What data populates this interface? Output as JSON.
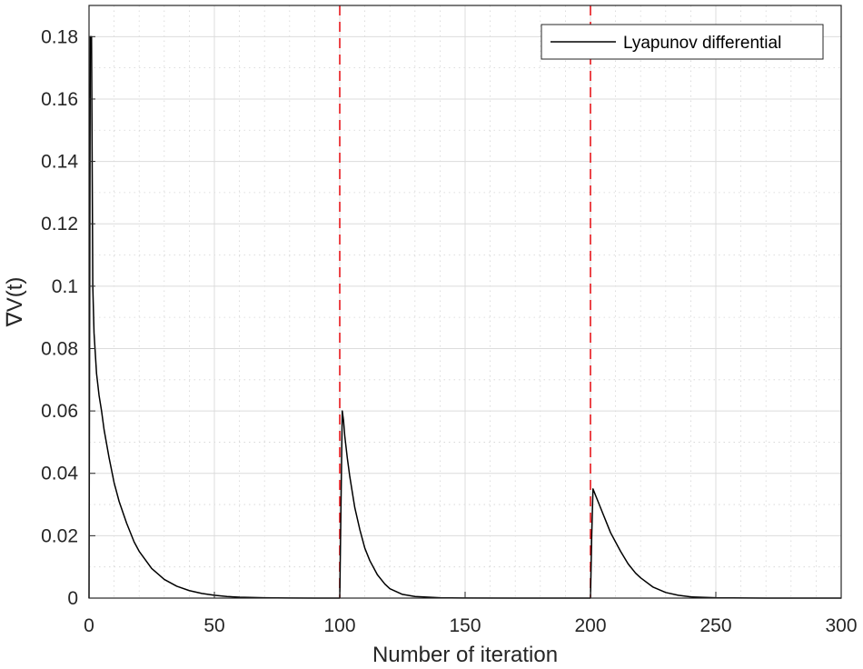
{
  "chart_data": {
    "type": "line",
    "title": "",
    "xlabel": "Number of iteration",
    "ylabel": "∇V(t)",
    "xlim": [
      0,
      300
    ],
    "ylim": [
      0,
      0.19
    ],
    "x_ticks": [
      0,
      50,
      100,
      150,
      200,
      250,
      300
    ],
    "x_tick_labels": [
      "0",
      "50",
      "100",
      "150",
      "200",
      "250",
      "300"
    ],
    "y_ticks": [
      0,
      0.02,
      0.04,
      0.06,
      0.08,
      0.1,
      0.12,
      0.14,
      0.16,
      0.18
    ],
    "y_tick_labels": [
      "0",
      "0.02",
      "0.04",
      "0.06",
      "0.08",
      "0.1",
      "0.12",
      "0.14",
      "0.16",
      "0.18"
    ],
    "grid": true,
    "minor_grid": true,
    "legend_position": "top-right",
    "series": [
      {
        "name": "Lyapunov differential",
        "color": "#000000",
        "segments": [
          {
            "x": [
              0,
              0.5,
              1,
              1.5,
              2,
              3,
              4,
              5,
              6,
              8,
              10,
              12,
              15,
              18,
              20,
              25,
              30,
              35,
              40,
              45,
              50,
              55,
              60,
              70,
              80,
              90,
              100
            ],
            "y": [
              0,
              0.18,
              0.18,
              0.1,
              0.085,
              0.072,
              0.065,
              0.06,
              0.054,
              0.045,
              0.037,
              0.031,
              0.024,
              0.018,
              0.015,
              0.0095,
              0.006,
              0.0038,
              0.0024,
              0.0015,
              0.0009,
              0.0005,
              0.0003,
              0.0001,
              3e-05,
              1e-05,
              0
            ]
          },
          {
            "x": [
              100,
              100.5,
              101,
              101.5,
              102,
              103,
              104,
              105,
              106,
              108,
              110,
              112,
              115,
              118,
              120,
              125,
              130,
              140,
              150,
              170,
              200
            ],
            "y": [
              0,
              0.03,
              0.06,
              0.057,
              0.052,
              0.045,
              0.039,
              0.034,
              0.029,
              0.022,
              0.016,
              0.012,
              0.0075,
              0.0045,
              0.003,
              0.0012,
              0.0005,
              0.0001,
              2e-05,
              0,
              0
            ]
          },
          {
            "x": [
              200,
              200.5,
              201,
              201.5,
              202,
              203,
              204,
              205,
              206,
              208,
              210,
              212,
              215,
              218,
              220,
              225,
              230,
              235,
              240,
              250,
              270,
              300
            ],
            "y": [
              0,
              0.02,
              0.035,
              0.034,
              0.033,
              0.031,
              0.029,
              0.027,
              0.025,
              0.021,
              0.018,
              0.015,
              0.011,
              0.008,
              0.0065,
              0.0035,
              0.0018,
              0.0009,
              0.0004,
              0.0001,
              0,
              0
            ]
          }
        ]
      }
    ],
    "vlines": [
      {
        "x": 100,
        "color": "#e8161b",
        "style": "dashed"
      },
      {
        "x": 200,
        "color": "#e8161b",
        "style": "dashed"
      }
    ]
  }
}
